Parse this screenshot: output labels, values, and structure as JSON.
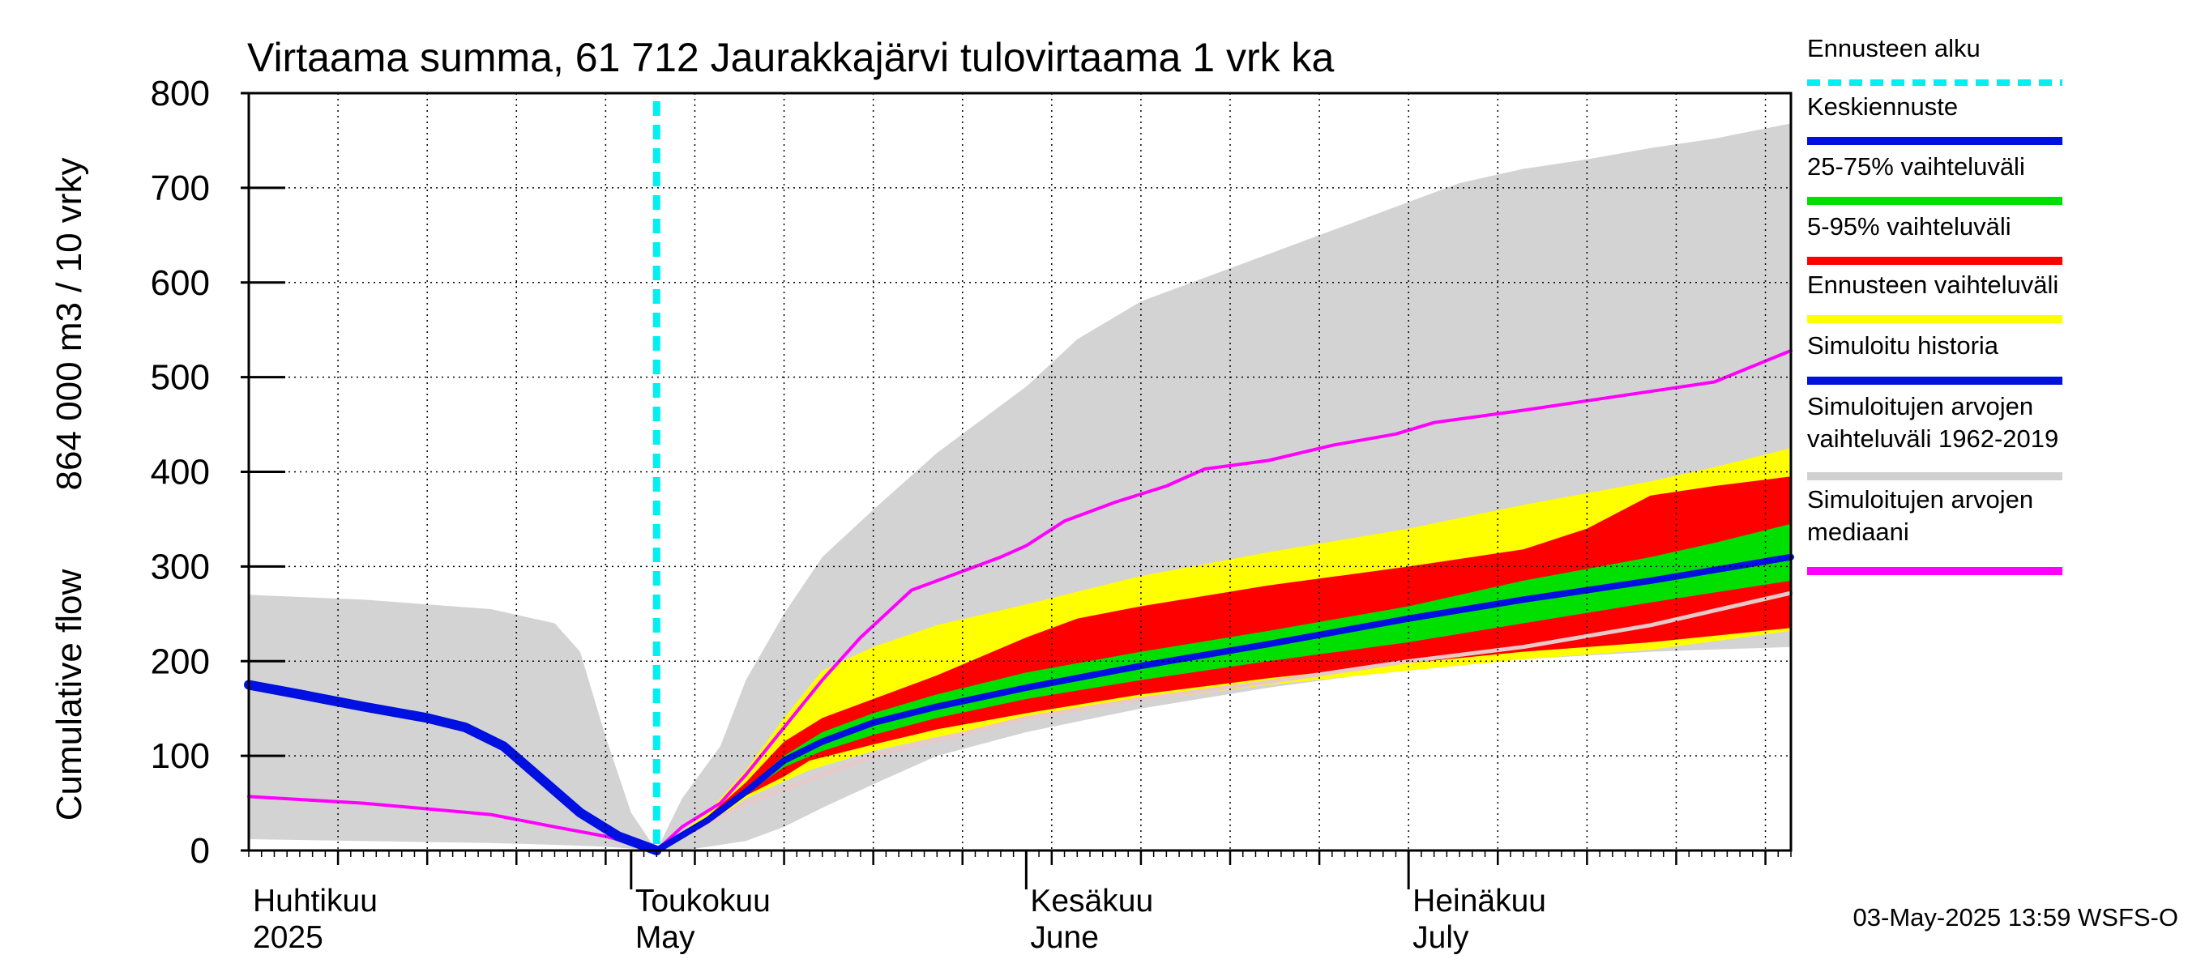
{
  "chart_data": {
    "type": "area",
    "title": "Virtaama summa, 61 712 Jaurakkajärvi tulovirtaama 1 vrk ka",
    "ylabel_line1": "Cumulative flow",
    "ylabel_line2": "864 000 m3 / 10 vrky",
    "ylim": [
      0,
      800
    ],
    "yticks": [
      0,
      100,
      200,
      300,
      400,
      500,
      600,
      700,
      800
    ],
    "x_start": "2025-04-01",
    "x_end": "2025-07-31",
    "forecast_start": "2025-05-03",
    "grid": true,
    "legend_position": "right",
    "month_labels": [
      {
        "date": "2025-04-01",
        "fi": "Huhtikuu",
        "en": "2025"
      },
      {
        "date": "2025-05-01",
        "fi": "Toukokuu",
        "en": "May"
      },
      {
        "date": "2025-06-01",
        "fi": "Kesäkuu",
        "en": "June"
      },
      {
        "date": "2025-07-01",
        "fi": "Heinäkuu",
        "en": "July"
      }
    ],
    "timestamp": "03-May-2025 13:59 WSFS-O",
    "legend": [
      {
        "label": "Ennusteen alku",
        "color": "#00f0f0",
        "style": "dashed"
      },
      {
        "label": "Keskiennuste",
        "color": "#0010e0"
      },
      {
        "label": "25-75% vaihteluväli",
        "color": "#00e000"
      },
      {
        "label": "5-95% vaihteluväli",
        "color": "#ff0000"
      },
      {
        "label": "Ennusteen vaihteluväli",
        "color": "#ffff00"
      },
      {
        "label": "Simuloitu historia",
        "color": "#0010e0"
      },
      {
        "label": "Simuloitujen arvojen\nvaihteluväli 1962-2019",
        "color": "#d0d0d0"
      },
      {
        "label": "Simuloitujen arvojen\nmediaani",
        "color": "#ff00ff"
      }
    ],
    "series": {
      "hist_range_upper": [
        [
          "2025-04-01",
          270
        ],
        [
          "2025-04-10",
          265
        ],
        [
          "2025-04-20",
          255
        ],
        [
          "2025-04-25",
          240
        ],
        [
          "2025-04-27",
          210
        ],
        [
          "2025-04-29",
          120
        ],
        [
          "2025-05-01",
          40
        ],
        [
          "2025-05-03",
          0
        ],
        [
          "2025-05-05",
          55
        ],
        [
          "2025-05-08",
          110
        ],
        [
          "2025-05-10",
          180
        ],
        [
          "2025-05-13",
          250
        ],
        [
          "2025-05-16",
          310
        ],
        [
          "2025-05-20",
          360
        ],
        [
          "2025-05-25",
          420
        ],
        [
          "2025-06-01",
          490
        ],
        [
          "2025-06-05",
          540
        ],
        [
          "2025-06-10",
          580
        ],
        [
          "2025-06-15",
          605
        ],
        [
          "2025-06-20",
          630
        ],
        [
          "2025-06-25",
          655
        ],
        [
          "2025-07-01",
          685
        ],
        [
          "2025-07-05",
          705
        ],
        [
          "2025-07-10",
          720
        ],
        [
          "2025-07-15",
          730
        ],
        [
          "2025-07-20",
          742
        ],
        [
          "2025-07-25",
          752
        ],
        [
          "2025-07-31",
          768
        ]
      ],
      "hist_range_lower": [
        [
          "2025-04-01",
          12
        ],
        [
          "2025-04-10",
          10
        ],
        [
          "2025-04-20",
          8
        ],
        [
          "2025-04-25",
          6
        ],
        [
          "2025-04-29",
          4
        ],
        [
          "2025-05-01",
          2
        ],
        [
          "2025-05-03",
          0
        ],
        [
          "2025-05-06",
          2
        ],
        [
          "2025-05-10",
          10
        ],
        [
          "2025-05-13",
          25
        ],
        [
          "2025-05-16",
          45
        ],
        [
          "2025-05-20",
          70
        ],
        [
          "2025-05-25",
          100
        ],
        [
          "2025-06-01",
          125
        ],
        [
          "2025-06-10",
          150
        ],
        [
          "2025-06-20",
          172
        ],
        [
          "2025-07-01",
          192
        ],
        [
          "2025-07-10",
          202
        ],
        [
          "2025-07-20",
          210
        ],
        [
          "2025-07-31",
          215
        ]
      ],
      "forecast_range_upper": [
        [
          "2025-05-03",
          0
        ],
        [
          "2025-05-07",
          40
        ],
        [
          "2025-05-10",
          85
        ],
        [
          "2025-05-13",
          140
        ],
        [
          "2025-05-16",
          190
        ],
        [
          "2025-05-20",
          215
        ],
        [
          "2025-05-25",
          238
        ],
        [
          "2025-06-01",
          260
        ],
        [
          "2025-06-10",
          290
        ],
        [
          "2025-06-20",
          315
        ],
        [
          "2025-07-01",
          340
        ],
        [
          "2025-07-10",
          365
        ],
        [
          "2025-07-20",
          390
        ],
        [
          "2025-07-25",
          405
        ],
        [
          "2025-07-31",
          425
        ]
      ],
      "forecast_range_lower": [
        [
          "2025-05-03",
          0
        ],
        [
          "2025-05-07",
          28
        ],
        [
          "2025-05-10",
          55
        ],
        [
          "2025-05-15",
          85
        ],
        [
          "2025-05-20",
          105
        ],
        [
          "2025-05-25",
          120
        ],
        [
          "2025-06-01",
          138
        ],
        [
          "2025-06-10",
          158
        ],
        [
          "2025-06-20",
          175
        ],
        [
          "2025-07-01",
          190
        ],
        [
          "2025-07-10",
          202
        ],
        [
          "2025-07-20",
          212
        ],
        [
          "2025-07-31",
          232
        ]
      ],
      "p95": [
        [
          "2025-05-03",
          0
        ],
        [
          "2025-05-07",
          36
        ],
        [
          "2025-05-10",
          72
        ],
        [
          "2025-05-13",
          115
        ],
        [
          "2025-05-16",
          140
        ],
        [
          "2025-05-20",
          160
        ],
        [
          "2025-05-25",
          185
        ],
        [
          "2025-06-01",
          225
        ],
        [
          "2025-06-05",
          245
        ],
        [
          "2025-06-10",
          258
        ],
        [
          "2025-06-20",
          280
        ],
        [
          "2025-07-01",
          300
        ],
        [
          "2025-07-10",
          318
        ],
        [
          "2025-07-15",
          340
        ],
        [
          "2025-07-20",
          375
        ],
        [
          "2025-07-25",
          385
        ],
        [
          "2025-07-31",
          395
        ]
      ],
      "p5": [
        [
          "2025-05-03",
          0
        ],
        [
          "2025-05-07",
          30
        ],
        [
          "2025-05-10",
          58
        ],
        [
          "2025-05-13",
          78
        ],
        [
          "2025-05-15",
          95
        ],
        [
          "2025-05-20",
          112
        ],
        [
          "2025-05-25",
          128
        ],
        [
          "2025-06-01",
          145
        ],
        [
          "2025-06-10",
          165
        ],
        [
          "2025-06-20",
          182
        ],
        [
          "2025-07-01",
          198
        ],
        [
          "2025-07-10",
          210
        ],
        [
          "2025-07-20",
          220
        ],
        [
          "2025-07-31",
          235
        ]
      ],
      "p75": [
        [
          "2025-05-03",
          0
        ],
        [
          "2025-05-07",
          34
        ],
        [
          "2025-05-10",
          66
        ],
        [
          "2025-05-13",
          100
        ],
        [
          "2025-05-16",
          125
        ],
        [
          "2025-05-20",
          145
        ],
        [
          "2025-05-25",
          165
        ],
        [
          "2025-06-01",
          188
        ],
        [
          "2025-06-10",
          210
        ],
        [
          "2025-06-20",
          232
        ],
        [
          "2025-07-01",
          258
        ],
        [
          "2025-07-10",
          285
        ],
        [
          "2025-07-20",
          310
        ],
        [
          "2025-07-25",
          325
        ],
        [
          "2025-07-31",
          345
        ]
      ],
      "p25": [
        [
          "2025-05-03",
          0
        ],
        [
          "2025-05-07",
          31
        ],
        [
          "2025-05-10",
          60
        ],
        [
          "2025-05-13",
          88
        ],
        [
          "2025-05-16",
          105
        ],
        [
          "2025-05-20",
          122
        ],
        [
          "2025-05-25",
          140
        ],
        [
          "2025-06-01",
          160
        ],
        [
          "2025-06-10",
          180
        ],
        [
          "2025-06-20",
          200
        ],
        [
          "2025-07-01",
          220
        ],
        [
          "2025-07-10",
          240
        ],
        [
          "2025-07-20",
          262
        ],
        [
          "2025-07-31",
          285
        ]
      ],
      "median_forecast": [
        [
          "2025-05-03",
          0
        ],
        [
          "2025-05-07",
          32
        ],
        [
          "2025-05-10",
          62
        ],
        [
          "2025-05-13",
          95
        ],
        [
          "2025-05-16",
          115
        ],
        [
          "2025-05-20",
          135
        ],
        [
          "2025-05-25",
          152
        ],
        [
          "2025-06-01",
          172
        ],
        [
          "2025-06-10",
          195
        ],
        [
          "2025-06-20",
          218
        ],
        [
          "2025-07-01",
          245
        ],
        [
          "2025-07-10",
          265
        ],
        [
          "2025-07-20",
          285
        ],
        [
          "2025-07-31",
          310
        ]
      ],
      "simulated_history": [
        [
          "2025-04-01",
          175
        ],
        [
          "2025-04-05",
          165
        ],
        [
          "2025-04-10",
          152
        ],
        [
          "2025-04-15",
          140
        ],
        [
          "2025-04-18",
          130
        ],
        [
          "2025-04-21",
          110
        ],
        [
          "2025-04-24",
          75
        ],
        [
          "2025-04-27",
          40
        ],
        [
          "2025-04-30",
          15
        ],
        [
          "2025-05-03",
          0
        ]
      ],
      "sim_median": [
        [
          "2025-04-01",
          57
        ],
        [
          "2025-04-10",
          50
        ],
        [
          "2025-04-20",
          38
        ],
        [
          "2025-04-25",
          25
        ],
        [
          "2025-04-29",
          15
        ],
        [
          "2025-05-03",
          0
        ],
        [
          "2025-05-05",
          25
        ],
        [
          "2025-05-08",
          50
        ],
        [
          "2025-05-10",
          80
        ],
        [
          "2025-05-13",
          130
        ],
        [
          "2025-05-16",
          180
        ],
        [
          "2025-05-19",
          225
        ],
        [
          "2025-05-21",
          250
        ],
        [
          "2025-05-23",
          275
        ],
        [
          "2025-05-26",
          290
        ],
        [
          "2025-05-30",
          310
        ],
        [
          "2025-06-01",
          322
        ],
        [
          "2025-06-04",
          348
        ],
        [
          "2025-06-08",
          368
        ],
        [
          "2025-06-12",
          385
        ],
        [
          "2025-06-15",
          403
        ],
        [
          "2025-06-20",
          412
        ],
        [
          "2025-06-25",
          428
        ],
        [
          "2025-06-30",
          440
        ],
        [
          "2025-07-03",
          452
        ],
        [
          "2025-07-10",
          465
        ],
        [
          "2025-07-15",
          475
        ],
        [
          "2025-07-20",
          485
        ],
        [
          "2025-07-25",
          495
        ],
        [
          "2025-07-31",
          528
        ]
      ],
      "history_median": [
        [
          "2025-05-03",
          0
        ],
        [
          "2025-05-10",
          50
        ],
        [
          "2025-05-20",
          100
        ],
        [
          "2025-06-01",
          140
        ],
        [
          "2025-06-10",
          160
        ],
        [
          "2025-06-20",
          178
        ],
        [
          "2025-07-01",
          200
        ],
        [
          "2025-07-10",
          215
        ],
        [
          "2025-07-20",
          238
        ],
        [
          "2025-07-31",
          272
        ]
      ]
    }
  }
}
